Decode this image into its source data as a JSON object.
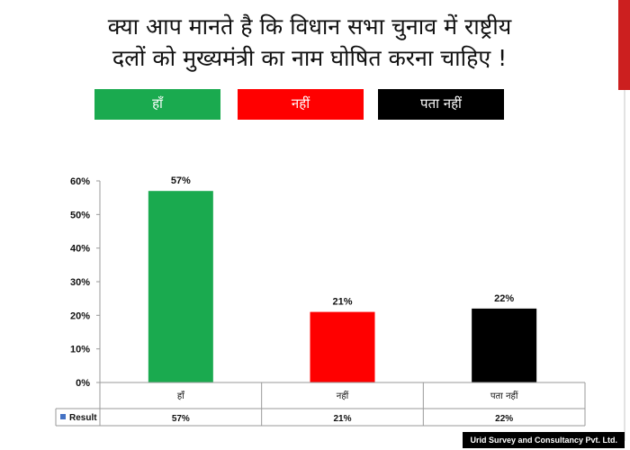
{
  "header": {
    "title_line1": "क्या आप मानते है कि विधान सभा चुनाव में राष्ट्रीय",
    "title_line2": "दलों को मुख्यमंत्री का नाम घोषित करना चाहिए !"
  },
  "legend_chips": [
    {
      "label": "हाँ",
      "color": "#1aaa4f"
    },
    {
      "label": "नहीं",
      "color": "#ff0000"
    },
    {
      "label": "पता नहीं",
      "color": "#000000"
    }
  ],
  "footer": {
    "text": "Urid Survey and Consultancy Pvt. Ltd."
  },
  "chart_data": {
    "type": "bar",
    "categories": [
      "हाँ",
      "नहीं",
      "पता नहीं"
    ],
    "series": [
      {
        "name": "Result",
        "values": [
          57,
          21,
          22
        ]
      }
    ],
    "data_labels": [
      "57%",
      "21%",
      "22%"
    ],
    "bar_colors": [
      "#1aaa4f",
      "#ff0000",
      "#000000"
    ],
    "ylim": [
      0,
      60
    ],
    "yticks": [
      "0%",
      "10%",
      "20%",
      "30%",
      "40%",
      "50%",
      "60%"
    ],
    "legend_key_color": "#4472c4",
    "grid": false,
    "data_table": true
  }
}
